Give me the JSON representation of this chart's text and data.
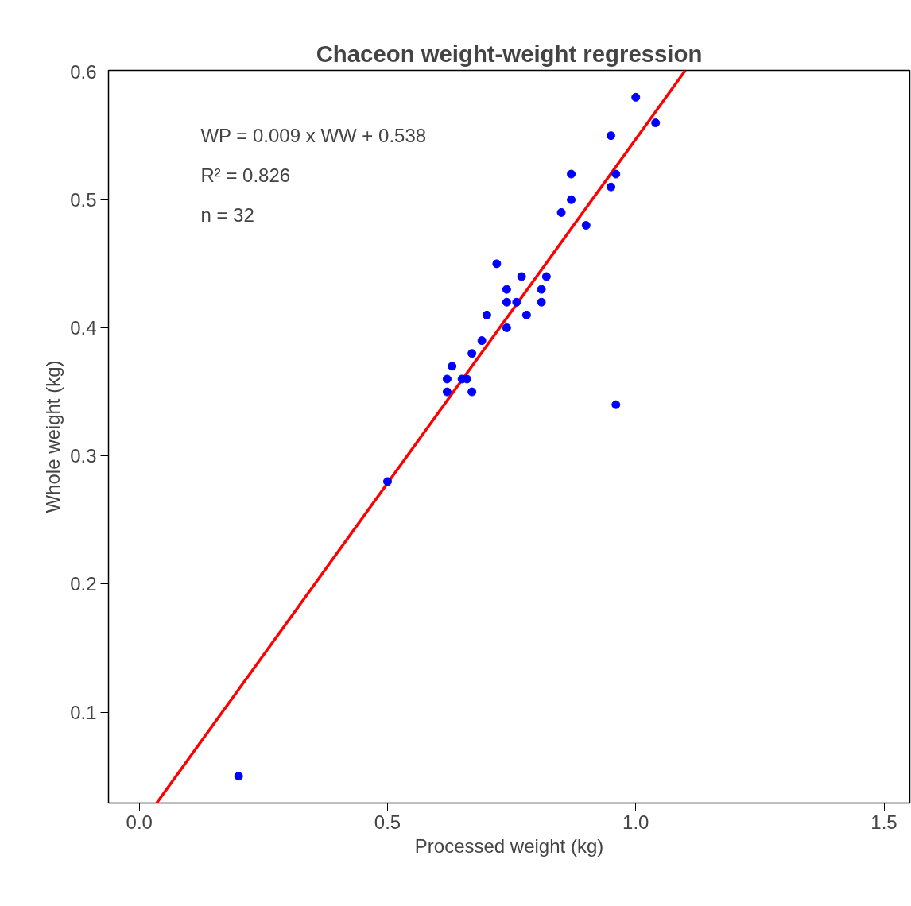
{
  "chart_data": {
    "type": "scatter",
    "title": "Chaceon weight-weight regression",
    "xlabel": "Processed weight (kg)",
    "ylabel": "Whole weight (kg)",
    "annotations": [
      "WP = 0.009 x WW +  0.538",
      "R² = 0.826",
      "n = 32"
    ],
    "xlim": [
      -0.062,
      1.552
    ],
    "ylim": [
      0.029,
      0.601
    ],
    "xticks": [
      {
        "value": 0,
        "label": "0.0"
      },
      {
        "value": 0.5,
        "label": "0.5"
      },
      {
        "value": 1,
        "label": "1.0"
      },
      {
        "value": 1.5,
        "label": "1.5"
      }
    ],
    "yticks": [
      0.1,
      0.2,
      0.3,
      0.4,
      0.5,
      0.6
    ],
    "grid": false,
    "series": [
      {
        "marker": "circle",
        "color": "#0000ff",
        "x": [
          0.2,
          0.5,
          0.62,
          0.62,
          0.63,
          0.65,
          0.66,
          0.67,
          0.67,
          0.69,
          0.7,
          0.72,
          0.74,
          0.74,
          0.74,
          0.76,
          0.77,
          0.78,
          0.81,
          0.81,
          0.82,
          0.85,
          0.87,
          0.87,
          0.9,
          0.95,
          0.95,
          0.96,
          0.96,
          1.0,
          1.04
        ],
        "values": [
          0.05,
          0.28,
          0.36,
          0.35,
          0.37,
          0.36,
          0.36,
          0.35,
          0.38,
          0.39,
          0.41,
          0.45,
          0.43,
          0.42,
          0.4,
          0.42,
          0.44,
          0.41,
          0.43,
          0.42,
          0.44,
          0.49,
          0.52,
          0.5,
          0.48,
          0.55,
          0.51,
          0.52,
          0.34,
          0.58,
          0.56
        ]
      },
      {
        "type": "line",
        "color": "#ff0000",
        "x": [
          0.035,
          1.1
        ],
        "values": [
          0.029,
          0.601
        ]
      }
    ]
  }
}
